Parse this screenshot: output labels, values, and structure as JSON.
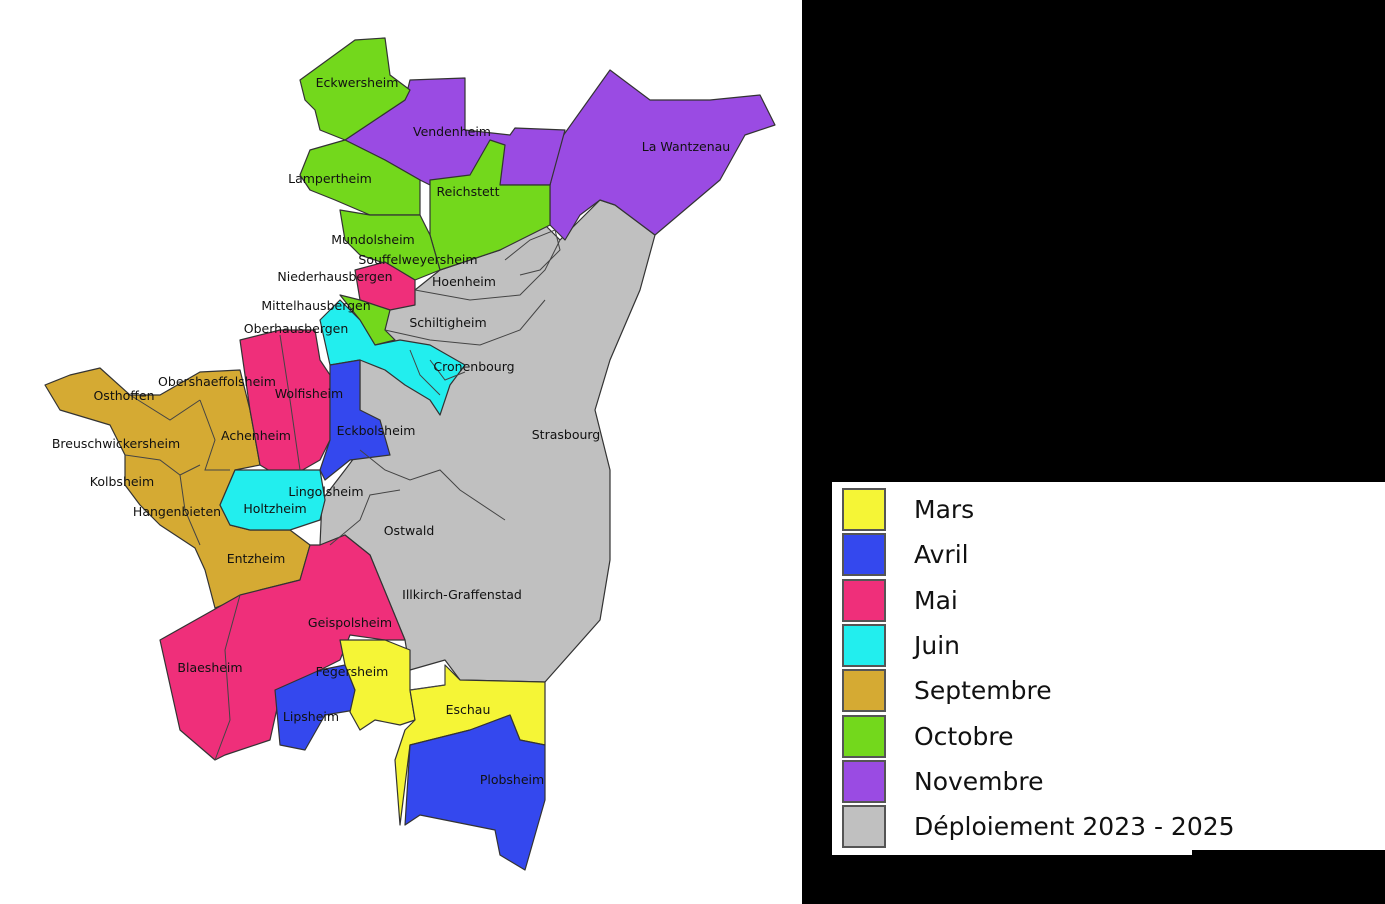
{
  "map": {
    "communes": [
      {
        "name": "Eckwersheim",
        "category": "Octobre"
      },
      {
        "name": "Vendenheim",
        "category": "Novembre"
      },
      {
        "name": "La Wantzenau",
        "category": "Novembre"
      },
      {
        "name": "Lampertheim",
        "category": "Octobre"
      },
      {
        "name": "Reichstett",
        "category": "Octobre"
      },
      {
        "name": "Mundolsheim",
        "category": "Octobre"
      },
      {
        "name": "Souffelweyersheim",
        "category": "Octobre"
      },
      {
        "name": "Niederhausbergen",
        "category": "Mai"
      },
      {
        "name": "Hoenheim",
        "category": "Déploiement 2023 - 2025"
      },
      {
        "name": "Mittelhausbergen",
        "category": "Octobre"
      },
      {
        "name": "Schiltigheim",
        "category": "Déploiement 2023 - 2025"
      },
      {
        "name": "Oberhausbergen",
        "category": "Juin"
      },
      {
        "name": "Cronenbourg",
        "category": "Juin"
      },
      {
        "name": "Obershaeffolsheim",
        "category": "Septembre"
      },
      {
        "name": "Osthoffen",
        "category": "Septembre"
      },
      {
        "name": "Wolfisheim",
        "category": "Mai"
      },
      {
        "name": "Achenheim",
        "category": "Septembre"
      },
      {
        "name": "Eckbolsheim",
        "category": "Avril"
      },
      {
        "name": "Breuschwickersheim",
        "category": "Septembre"
      },
      {
        "name": "Strasbourg",
        "category": "Déploiement 2023 - 2025"
      },
      {
        "name": "Kolbsheim",
        "category": "Septembre"
      },
      {
        "name": "Lingolsheim",
        "category": "Déploiement 2023 - 2025"
      },
      {
        "name": "Hangenbieten",
        "category": "Septembre"
      },
      {
        "name": "Holtzheim",
        "category": "Juin"
      },
      {
        "name": "Ostwald",
        "category": "Déploiement 2023 - 2025"
      },
      {
        "name": "Entzheim",
        "category": "Septembre"
      },
      {
        "name": "Illkirch-Graffenstad",
        "category": "Déploiement 2023 - 2025"
      },
      {
        "name": "Geispolsheim",
        "category": "Mai"
      },
      {
        "name": "Blaesheim",
        "category": "Mai"
      },
      {
        "name": "Fegersheim",
        "category": "Mars"
      },
      {
        "name": "Eschau",
        "category": "Mars"
      },
      {
        "name": "Lipsheim",
        "category": "Avril"
      },
      {
        "name": "Plobsheim",
        "category": "Avril"
      }
    ]
  },
  "legend": {
    "items": [
      {
        "label": "Mars",
        "color": "#f5f536"
      },
      {
        "label": "Avril",
        "color": "#3448ee"
      },
      {
        "label": "Mai",
        "color": "#ef2f7a"
      },
      {
        "label": "Juin",
        "color": "#22eeee"
      },
      {
        "label": "Septembre",
        "color": "#d5aa33"
      },
      {
        "label": "Octobre",
        "color": "#73d81c"
      },
      {
        "label": "Novembre",
        "color": "#9a4be3"
      },
      {
        "label": "Déploiement 2023 - 2025",
        "color": "#c0c0c0"
      }
    ]
  }
}
